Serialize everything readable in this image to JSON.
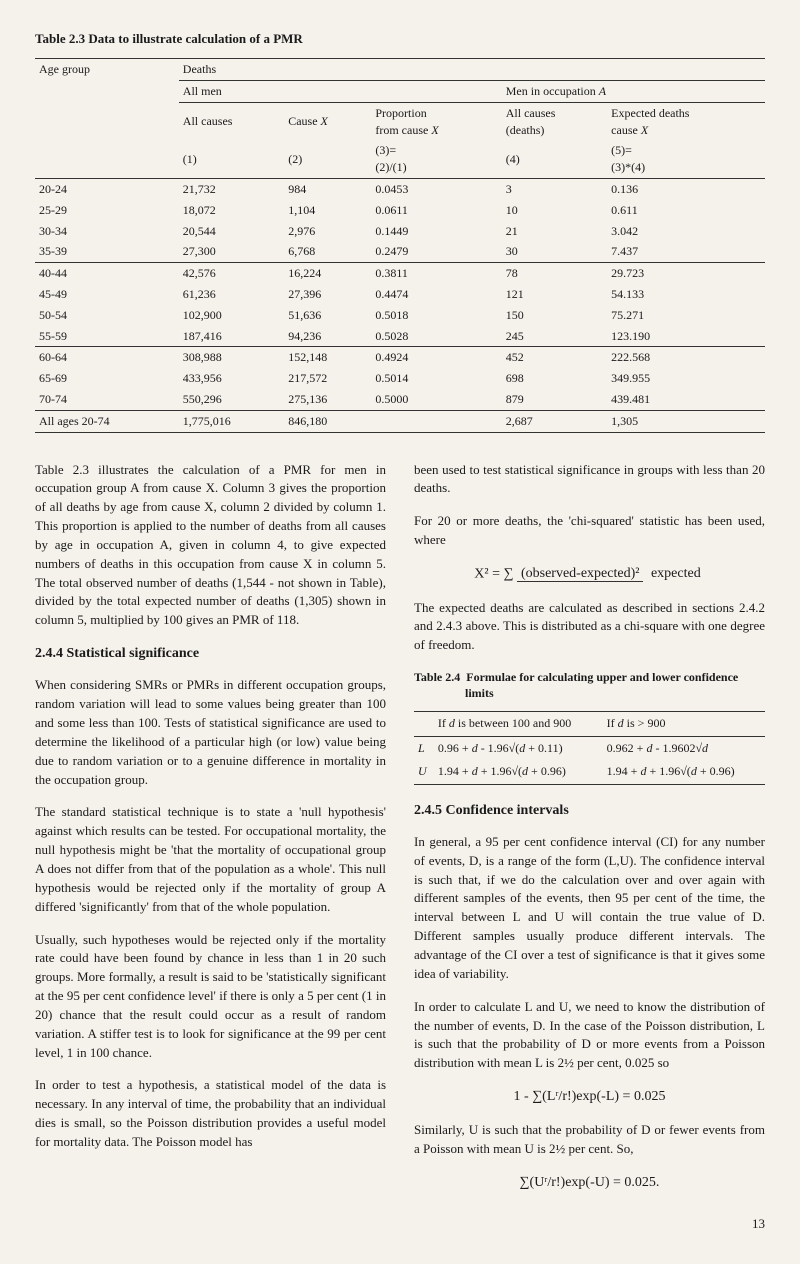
{
  "table23": {
    "caption": "Table 2.3   Data to illustrate calculation of a PMR",
    "header1a": "Age group",
    "header1b": "Deaths",
    "header2a": "All men",
    "header2b": "Men in occupation A",
    "cols": {
      "c1": "All causes",
      "c2": "Cause X",
      "c3a": "Proportion",
      "c3b": "from cause X",
      "c4a": "All causes",
      "c4b": "(deaths)",
      "c5a": "Expected deaths",
      "c5b": "cause X"
    },
    "nums": {
      "n1": "(1)",
      "n2": "(2)",
      "n3a": "(3)=",
      "n3b": "(2)/(1)",
      "n4": "(4)",
      "n5a": "(5)=",
      "n5b": "(3)*(4)"
    },
    "rows": [
      [
        "20-24",
        "21,732",
        "984",
        "0.0453",
        "3",
        "0.136"
      ],
      [
        "25-29",
        "18,072",
        "1,104",
        "0.0611",
        "10",
        "0.611"
      ],
      [
        "30-34",
        "20,544",
        "2,976",
        "0.1449",
        "21",
        "3.042"
      ],
      [
        "35-39",
        "27,300",
        "6,768",
        "0.2479",
        "30",
        "7.437"
      ],
      [
        "40-44",
        "42,576",
        "16,224",
        "0.3811",
        "78",
        "29.723"
      ],
      [
        "45-49",
        "61,236",
        "27,396",
        "0.4474",
        "121",
        "54.133"
      ],
      [
        "50-54",
        "102,900",
        "51,636",
        "0.5018",
        "150",
        "75.271"
      ],
      [
        "55-59",
        "187,416",
        "94,236",
        "0.5028",
        "245",
        "123.190"
      ],
      [
        "60-64",
        "308,988",
        "152,148",
        "0.4924",
        "452",
        "222.568"
      ],
      [
        "65-69",
        "433,956",
        "217,572",
        "0.5014",
        "698",
        "349.955"
      ],
      [
        "70-74",
        "550,296",
        "275,136",
        "0.5000",
        "879",
        "439.481"
      ]
    ],
    "total": [
      "All ages 20-74",
      "1,775,016",
      "846,180",
      "",
      "2,687",
      "1,305"
    ]
  },
  "leftcol": {
    "p1": "Table 2.3 illustrates the calculation of a PMR for men in occupation group A from cause X. Column 3 gives the proportion of all deaths by age from cause X, column 2 divided by column 1. This proportion is applied to the number of deaths from all causes by age in occupation A, given in column 4, to give expected numbers of deaths in this occupation from cause X in column 5. The total observed number of deaths (1,544 - not shown in Table), divided by the total expected number of deaths (1,305) shown in column 5, multiplied by 100 gives an PMR of 118.",
    "h244": "2.4.4   Statistical significance",
    "p2": "When considering SMRs or PMRs in different occupation groups, random variation will lead to some values being greater than 100 and some less than 100. Tests of statistical significance are used to determine the likelihood of a particular high (or low) value being due to random variation or to a genuine difference in mortality in the occupation group.",
    "p3": "The standard statistical technique is to state a 'null hypothesis' against which results can be tested. For occupational mortality, the null hypothesis might be 'that the mortality of occupational group A does not differ from that of the population as a whole'. This null hypothesis would be rejected only if the mortality of group A differed 'significantly' from that of the whole population.",
    "p4": "Usually, such hypotheses would be rejected only if the mortality rate could have been found by chance in less than 1 in 20 such groups. More formally, a result is said to be 'statistically significant at the 95 per cent confidence level' if there is only a 5 per cent (1 in 20) chance that the result could occur as a result of random variation. A stiffer test is to look for significance at the 99 per cent level, 1 in 100 chance.",
    "p5": "In order to test a hypothesis, a statistical model of the data is necessary. In any interval of time, the probability that an individual dies is small, so the Poisson distribution provides a useful model for mortality data. The Poisson model has"
  },
  "rightcol": {
    "p1": "been used to test statistical significance in groups with less than 20 deaths.",
    "p2": "For 20 or more deaths, the 'chi-squared' statistic has been used, where",
    "formula_lhs": "X² = ∑",
    "formula_num": "(observed-expected)²",
    "formula_den": "expected",
    "p3": "The expected deaths are calculated as described in sections 2.4.2 and 2.4.3 above. This is distributed as a chi-square with one degree of freedom.",
    "t24caption": "Table 2.4   Formulae for calculating upper and lower confidence limits",
    "t24h1": "If d is between 100 and 900",
    "t24h2": "If d is > 900",
    "t24L": "L",
    "t24U": "U",
    "t24L1": "0.96 + d - 1.96√(d + 0.11)",
    "t24U1": "1.94 + d + 1.96√(d + 0.96)",
    "t24L2": "0.962 + d - 1.9602√d",
    "t24U2": "1.94 + d + 1.96√(d + 0.96)",
    "h245": "2.4.5   Confidence intervals",
    "p4": "In general, a 95 per cent confidence interval (CI) for any number of events, D, is a range of the form (L,U). The confidence interval is such that, if we do the calculation over and over again with different samples of the events, then 95 per cent of the time, the interval between L and U will contain the true value of D. Different samples usually produce different intervals. The advantage of the CI over a test of significance is that it gives some idea of variability.",
    "p5": "In order to calculate L and U, we need to know the distribution of the number of events, D. In the case of the Poisson distribution, L is such that the probability of D or more events from a Poisson distribution with mean L is 2½ per cent, 0.025 so",
    "formula2": "1 - ∑(Lʳ/r!)exp(-L) = 0.025",
    "p6": "Similarly, U is such that the probability of D or fewer events from a Poisson with mean U is 2½ per cent. So,",
    "formula3": "∑(Uʳ/r!)exp(-U) = 0.025."
  },
  "pagenum": "13"
}
